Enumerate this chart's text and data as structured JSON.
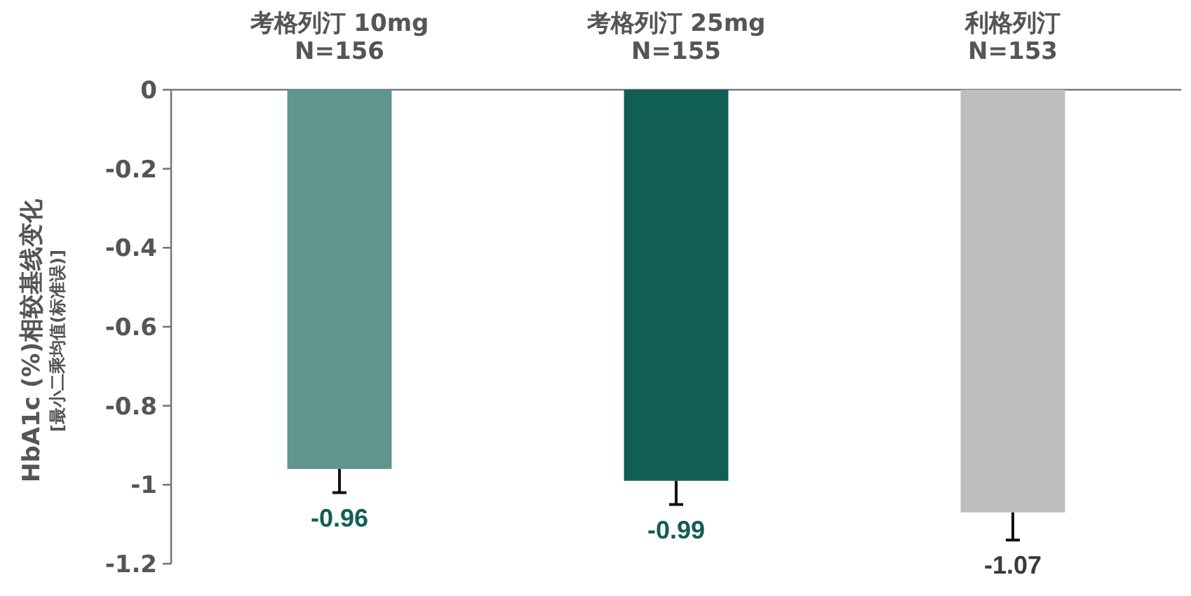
{
  "chart_data": {
    "type": "bar",
    "categories": [
      "考格列汀 10mg\nN=156",
      "考格列汀 25mg\nN=155",
      "利格列汀\nN=153"
    ],
    "values": [
      -0.96,
      -0.99,
      -1.07
    ],
    "colors": [
      "#5e958e",
      "#115e56",
      "#bebebe"
    ],
    "errors": [
      [
        -1.02,
        -0.96
      ],
      [
        -1.05,
        -0.99
      ],
      [
        -1.14,
        -1.07
      ]
    ],
    "ylabel": "HbA1c (%)相较基线变化\n[最小二乘均值(标准误)]",
    "ylim": [
      -1.2,
      0
    ],
    "yticks": [
      0,
      -0.2,
      -0.4,
      -0.6,
      -0.8,
      -1,
      -1.2
    ],
    "data_labels": true,
    "grid": false
  }
}
